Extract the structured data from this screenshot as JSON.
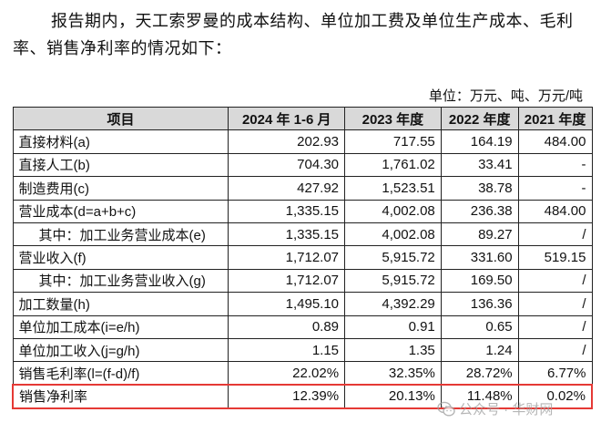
{
  "intro": {
    "text": "报告期内，天工索罗曼的成本结构、单位加工费及单位生产成本、毛利率、销售净利率的情况如下："
  },
  "unit_note": "单位：万元、吨、万元/吨",
  "table": {
    "headers": [
      "项目",
      "2024 年 1-6 月",
      "2023 年度",
      "2022 年度",
      "2021 年度"
    ],
    "rows": [
      {
        "label": "直接材料(a)",
        "values": [
          "202.93",
          "717.55",
          "164.19",
          "484.00"
        ]
      },
      {
        "label": "直接人工(b)",
        "values": [
          "704.30",
          "1,761.02",
          "33.41",
          "-"
        ]
      },
      {
        "label": "制造费用(c)",
        "values": [
          "427.92",
          "1,523.51",
          "38.78",
          "-"
        ]
      },
      {
        "label": "营业成本(d=a+b+c)",
        "values": [
          "1,335.15",
          "4,002.08",
          "236.38",
          "484.00"
        ]
      },
      {
        "label": "其中：加工业务营业成本(e)",
        "values": [
          "1,335.15",
          "4,002.08",
          "89.27",
          "/"
        ]
      },
      {
        "label": "营业收入(f)",
        "values": [
          "1,712.07",
          "5,915.72",
          "331.60",
          "519.15"
        ]
      },
      {
        "label": "其中：加工业务营业收入(g)",
        "values": [
          "1,712.07",
          "5,915.72",
          "169.50",
          "/"
        ]
      },
      {
        "label": "加工数量(h)",
        "values": [
          "1,495.10",
          "4,392.29",
          "136.36",
          "/"
        ]
      },
      {
        "label": "单位加工成本(i=e/h)",
        "values": [
          "0.89",
          "0.91",
          "0.65",
          "/"
        ]
      },
      {
        "label": "单位加工收入(j=g/h)",
        "values": [
          "1.15",
          "1.35",
          "1.24",
          "/"
        ]
      },
      {
        "label": "销售毛利率(l=(f-d)/f)",
        "values": [
          "22.02%",
          "32.35%",
          "28.72%",
          "6.77%"
        ]
      },
      {
        "label": "销售净利率",
        "values": [
          "12.39%",
          "20.13%",
          "11.48%",
          "0.02%"
        ]
      }
    ]
  },
  "watermark": {
    "text": "公众号 · 华财网",
    "icon": "wechat-icon"
  },
  "colors": {
    "header_bg": "#d9d9d9",
    "highlight_border": "#e53935",
    "watermark": "#9e9e9e"
  }
}
